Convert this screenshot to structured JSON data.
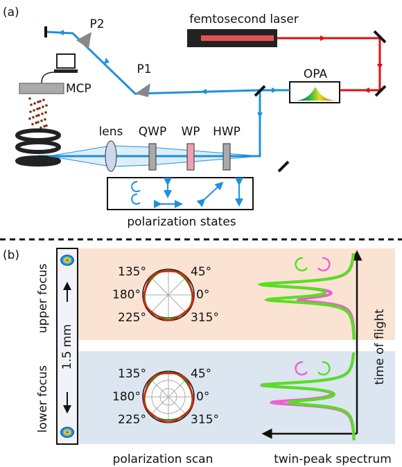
{
  "panel_a": {
    "label": "(a)",
    "laser": "femtosecond laser",
    "prism_2": "P2",
    "prism_1": "P1",
    "detector": "MCP",
    "opa": "OPA",
    "lens": "lens",
    "qwp": "QWP",
    "wp": "WP",
    "hwp": "HWP",
    "caption": "polarization states"
  },
  "panel_b": {
    "label": "(b)",
    "upper_focus": "upper focus",
    "lower_focus": "lower focus",
    "scale": "1.5 mm",
    "time_axis": "time of flight",
    "upper_polar": {
      "angles": [
        "135°",
        "45°",
        "180°",
        "0°",
        "225°",
        "315°"
      ]
    },
    "lower_polar": {
      "angles": [
        "135°",
        "45°",
        "180°",
        "0°",
        "225°",
        "315°"
      ]
    },
    "caption_left": "polarization scan",
    "caption_right": "twin-peak spectrum"
  }
}
